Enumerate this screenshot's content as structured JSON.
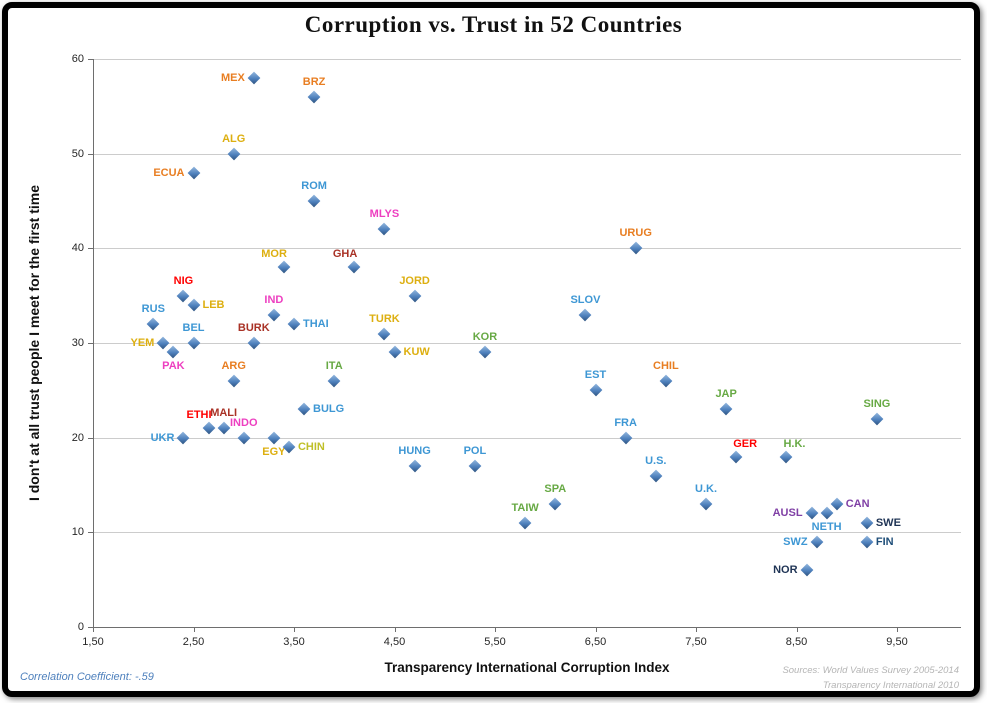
{
  "chart_data": {
    "type": "scatter",
    "title": "Corruption vs. Trust in 52 Countries",
    "xlabel": "Transparency International Corruption Index",
    "ylabel": "I don't at all trust people I meet for the first time",
    "xlim": [
      1.5,
      10.1
    ],
    "ylim": [
      0,
      60
    ],
    "x_tick_values": [
      1.5,
      2.5,
      3.5,
      4.5,
      5.5,
      6.5,
      7.5,
      8.5,
      9.5
    ],
    "x_tick_labels": [
      "1,50",
      "2,50",
      "3,50",
      "4,50",
      "5,50",
      "6,50",
      "7,50",
      "8,50",
      "9,50"
    ],
    "y_tick_values": [
      0,
      10,
      20,
      30,
      40,
      50,
      60
    ],
    "y_tick_labels": [
      "0",
      "10",
      "20",
      "30",
      "40",
      "50",
      "60"
    ],
    "grid": "horizontal-only",
    "legend": "none",
    "marker": {
      "shape": "diamond",
      "color": "#4F81BD"
    },
    "palette": {
      "orange": "#E87E22",
      "gold": "#DDAF10",
      "yellowgreen": "#BFBF26",
      "blue": "#3E97D4",
      "red": "#FF0000",
      "darkred": "#A93226",
      "magenta": "#ED3FC0",
      "green": "#67A944",
      "purple": "#7F3FA5",
      "navy": "#1F3455",
      "darkblue": "#1F4E79",
      "correlation_text": "#4F81BD",
      "sources_text": "#B5B5B5"
    },
    "points": [
      {
        "label": "MEX",
        "x": 3.1,
        "y": 58,
        "color": "orange",
        "pos": "left"
      },
      {
        "label": "BRZ",
        "x": 3.7,
        "y": 56,
        "color": "orange",
        "pos": "above"
      },
      {
        "label": "ALG",
        "x": 2.9,
        "y": 50,
        "color": "gold",
        "pos": "above"
      },
      {
        "label": "ECUA",
        "x": 2.5,
        "y": 48,
        "color": "orange",
        "pos": "left"
      },
      {
        "label": "ROM",
        "x": 3.7,
        "y": 45,
        "color": "blue",
        "pos": "above"
      },
      {
        "label": "MLYS",
        "x": 4.4,
        "y": 42,
        "color": "magenta",
        "pos": "above"
      },
      {
        "label": "URUG",
        "x": 6.9,
        "y": 40,
        "color": "orange",
        "pos": "above"
      },
      {
        "label": "MOR",
        "x": 3.4,
        "y": 38,
        "color": "gold",
        "pos": "above-left"
      },
      {
        "label": "GHA",
        "x": 4.1,
        "y": 38,
        "color": "darkred",
        "pos": "above-left"
      },
      {
        "label": "NIG",
        "x": 2.4,
        "y": 35,
        "color": "red",
        "pos": "above"
      },
      {
        "label": "JORD",
        "x": 4.7,
        "y": 35,
        "color": "gold",
        "pos": "above"
      },
      {
        "label": "LEB",
        "x": 2.5,
        "y": 34,
        "color": "gold",
        "pos": "right"
      },
      {
        "label": "IND",
        "x": 3.3,
        "y": 33,
        "color": "magenta",
        "pos": "above"
      },
      {
        "label": "SLOV",
        "x": 6.4,
        "y": 33,
        "color": "blue",
        "pos": "above"
      },
      {
        "label": "RUS",
        "x": 2.1,
        "y": 32,
        "color": "blue",
        "pos": "above"
      },
      {
        "label": "THAI",
        "x": 3.5,
        "y": 32,
        "color": "blue",
        "pos": "right"
      },
      {
        "label": "TURK",
        "x": 4.4,
        "y": 31,
        "color": "gold",
        "pos": "above"
      },
      {
        "label": "BURK",
        "x": 3.1,
        "y": 30,
        "color": "darkred",
        "pos": "above"
      },
      {
        "label": "BEL",
        "x": 2.5,
        "y": 30,
        "color": "blue",
        "pos": "above"
      },
      {
        "label": "YEM",
        "x": 2.2,
        "y": 30,
        "color": "gold",
        "pos": "left"
      },
      {
        "label": "KUW",
        "x": 4.5,
        "y": 29,
        "color": "gold",
        "pos": "right"
      },
      {
        "label": "PAK",
        "x": 2.3,
        "y": 29,
        "color": "magenta",
        "pos": "below"
      },
      {
        "label": "KOR",
        "x": 5.4,
        "y": 29,
        "color": "green",
        "pos": "above"
      },
      {
        "label": "ARG",
        "x": 2.9,
        "y": 26,
        "color": "orange",
        "pos": "above"
      },
      {
        "label": "ITA",
        "x": 3.9,
        "y": 26,
        "color": "green",
        "pos": "above"
      },
      {
        "label": "CHIL",
        "x": 7.2,
        "y": 26,
        "color": "orange",
        "pos": "above"
      },
      {
        "label": "EST",
        "x": 6.5,
        "y": 25,
        "color": "blue",
        "pos": "above"
      },
      {
        "label": "BULG",
        "x": 3.6,
        "y": 23,
        "color": "blue",
        "pos": "right"
      },
      {
        "label": "JAP",
        "x": 7.8,
        "y": 23,
        "color": "green",
        "pos": "above"
      },
      {
        "label": "SING",
        "x": 9.3,
        "y": 22,
        "color": "green",
        "pos": "above"
      },
      {
        "label": "ETHI",
        "x": 2.65,
        "y": 21,
        "color": "red",
        "pos": "above-left"
      },
      {
        "label": "MALI",
        "x": 2.8,
        "y": 21,
        "color": "darkred",
        "pos": "above"
      },
      {
        "label": "INDO",
        "x": 3.0,
        "y": 20,
        "color": "magenta",
        "pos": "above"
      },
      {
        "label": "UKR",
        "x": 2.4,
        "y": 20,
        "color": "blue",
        "pos": "left"
      },
      {
        "label": "EGY",
        "x": 3.3,
        "y": 20,
        "color": "gold",
        "pos": "below"
      },
      {
        "label": "FRA",
        "x": 6.8,
        "y": 20,
        "color": "blue",
        "pos": "above"
      },
      {
        "label": "CHIN",
        "x": 3.45,
        "y": 19,
        "color": "yellowgreen",
        "pos": "right"
      },
      {
        "label": "GER",
        "x": 7.9,
        "y": 18,
        "color": "red",
        "pos": "above-right"
      },
      {
        "label": "H.K.",
        "x": 8.4,
        "y": 18,
        "color": "green",
        "pos": "above-right"
      },
      {
        "label": "HUNG",
        "x": 4.7,
        "y": 17,
        "color": "blue",
        "pos": "above"
      },
      {
        "label": "POL",
        "x": 5.3,
        "y": 17,
        "color": "blue",
        "pos": "above"
      },
      {
        "label": "U.S.",
        "x": 7.1,
        "y": 16,
        "color": "blue",
        "pos": "above"
      },
      {
        "label": "SPA",
        "x": 6.1,
        "y": 13,
        "color": "green",
        "pos": "above"
      },
      {
        "label": "U.K.",
        "x": 7.6,
        "y": 13,
        "color": "blue",
        "pos": "above"
      },
      {
        "label": "CAN",
        "x": 8.9,
        "y": 13,
        "color": "purple",
        "pos": "right"
      },
      {
        "label": "AUSL",
        "x": 8.65,
        "y": 12,
        "color": "purple",
        "pos": "left"
      },
      {
        "label": "NETH",
        "x": 8.8,
        "y": 12,
        "color": "blue",
        "pos": "below"
      },
      {
        "label": "TAIW",
        "x": 5.8,
        "y": 11,
        "color": "green",
        "pos": "above"
      },
      {
        "label": "SWE",
        "x": 9.2,
        "y": 11,
        "color": "navy",
        "pos": "right"
      },
      {
        "label": "SWZ",
        "x": 8.7,
        "y": 9,
        "color": "blue",
        "pos": "left"
      },
      {
        "label": "FIN",
        "x": 9.2,
        "y": 9,
        "color": "darkblue",
        "pos": "right"
      },
      {
        "label": "NOR",
        "x": 8.6,
        "y": 6,
        "color": "navy",
        "pos": "left"
      }
    ]
  },
  "footer": {
    "correlation": "Correlation Coefficient: -.59",
    "sources": [
      "Sources: World Values Survey 2005-2014",
      "Transparency International 2010"
    ]
  }
}
